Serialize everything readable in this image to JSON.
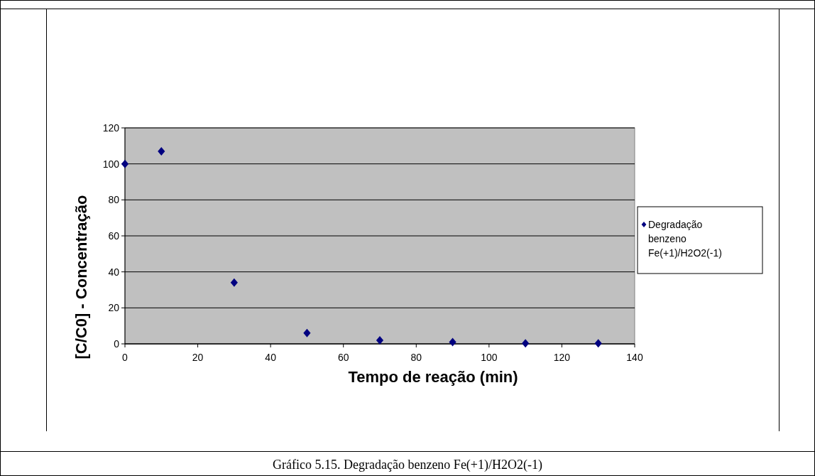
{
  "chart_data": {
    "type": "scatter",
    "xlabel": "Tempo de reação (min)",
    "ylabel": "[C/C0] - Concentração",
    "x": [
      0,
      10,
      30,
      50,
      70,
      90,
      110,
      130
    ],
    "series": [
      {
        "name": "Degradação benzeno Fe(+1)/H2O2(-1)",
        "color": "#000080",
        "values": [
          100,
          107,
          34,
          6,
          2,
          1,
          0.3,
          0.3
        ]
      }
    ],
    "xlim": [
      0,
      140
    ],
    "xticks": [
      0,
      20,
      40,
      60,
      80,
      100,
      120,
      140
    ],
    "ylim": [
      0,
      120
    ],
    "yticks": [
      0,
      20,
      40,
      60,
      80,
      100,
      120
    ],
    "grid": "y",
    "legend": "right",
    "marker": "diamond",
    "annotations": [
      "Gráfico 5.15. Degradação benzeno Fe(+1)/H2O2(-1)"
    ]
  }
}
